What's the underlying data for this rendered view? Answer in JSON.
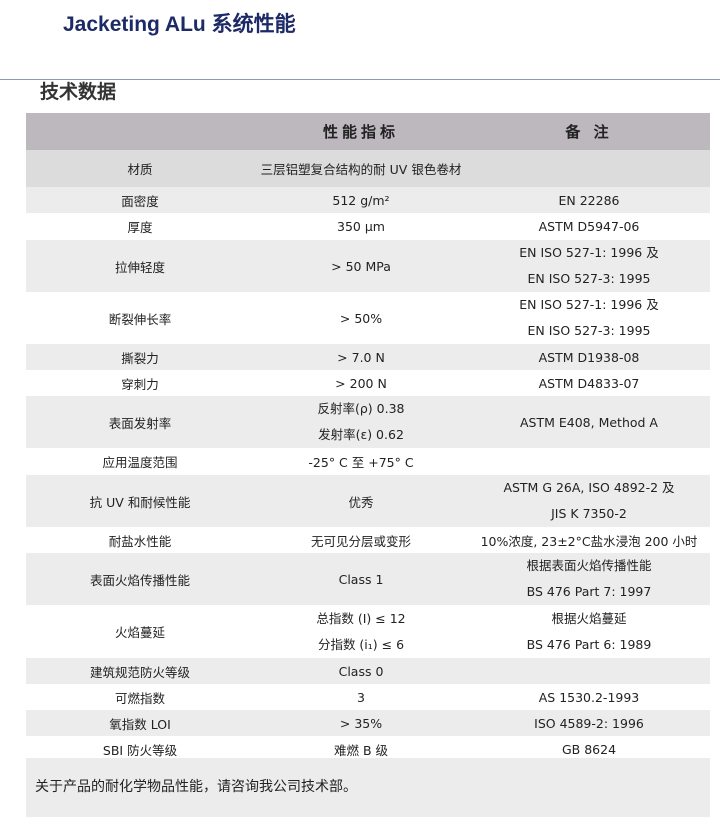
{
  "title": "Jacketing ALu 系统性能",
  "section": "技术数据",
  "table": {
    "headers": [
      "",
      "性能指标",
      "备 注"
    ],
    "rows": [
      {
        "label": "材质",
        "value": [
          "三层铝塑复合结构的耐 UV 银色卷材"
        ],
        "note": []
      },
      {
        "label": "面密度",
        "value": [
          "512 g/m²"
        ],
        "note": [
          "EN 22286"
        ]
      },
      {
        "label": "厚度",
        "value": [
          "350 μm"
        ],
        "note": [
          "ASTM D5947-06"
        ]
      },
      {
        "label": "拉伸轻度",
        "value": [
          "> 50 MPa"
        ],
        "note": [
          "EN ISO 527-1: 1996 及",
          "EN ISO 527-3: 1995"
        ]
      },
      {
        "label": "断裂伸长率",
        "value": [
          "> 50%"
        ],
        "note": [
          "EN ISO 527-1: 1996 及",
          "EN ISO 527-3: 1995"
        ]
      },
      {
        "label": "撕裂力",
        "value": [
          "> 7.0 N"
        ],
        "note": [
          "ASTM D1938-08"
        ]
      },
      {
        "label": "穿刺力",
        "value": [
          "> 200 N"
        ],
        "note": [
          "ASTM D4833-07"
        ]
      },
      {
        "label": "表面发射率",
        "value": [
          "反射率(ρ) 0.38",
          "发射率(ε) 0.62"
        ],
        "note": [
          "ASTM E408, Method A"
        ]
      },
      {
        "label": "应用温度范围",
        "value": [
          "-25° C 至 +75° C"
        ],
        "note": []
      },
      {
        "label": "抗 UV 和耐候性能",
        "value": [
          "优秀"
        ],
        "note": [
          "ASTM G 26A, ISO 4892-2 及",
          "JIS K 7350-2"
        ]
      },
      {
        "label": "耐盐水性能",
        "value": [
          "无可见分层或变形"
        ],
        "note": [
          "10%浓度, 23±2°C盐水浸泡 200 小时"
        ]
      },
      {
        "label": "表面火焰传播性能",
        "value": [
          "Class 1"
        ],
        "note": [
          "根据表面火焰传播性能",
          "BS 476 Part 7: 1997"
        ]
      },
      {
        "label": "火焰蔓延",
        "value": [
          "总指数 (I) ≤ 12",
          "分指数 (i₁) ≤ 6"
        ],
        "note": [
          "根据火焰蔓延",
          "BS 476 Part 6: 1989"
        ]
      },
      {
        "label": "建筑规范防火等级",
        "value": [
          "Class 0"
        ],
        "note": []
      },
      {
        "label": "可燃指数",
        "value": [
          "3"
        ],
        "note": [
          "AS 1530.2-1993"
        ]
      },
      {
        "label": "氧指数 LOI",
        "value": [
          "> 35%"
        ],
        "note": [
          "ISO 4589-2: 1996"
        ]
      },
      {
        "label": "SBI 防火等级",
        "value": [
          "难燃 B 级"
        ],
        "note": [
          "GB 8624"
        ]
      }
    ]
  },
  "footer": "关于产品的耐化学物品性能，请咨询我公司技术部。"
}
